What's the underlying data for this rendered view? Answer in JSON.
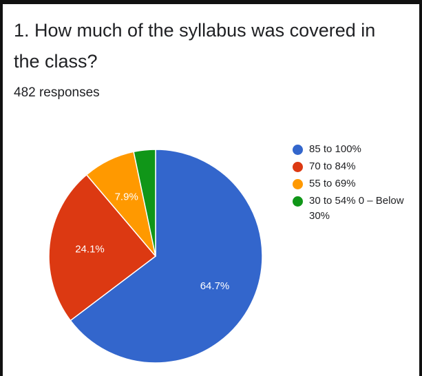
{
  "question": {
    "title": "1. How much of the syllabus was covered in the class?",
    "responses": "482 responses"
  },
  "chart_data": {
    "type": "pie",
    "title": "1. How much of the syllabus was covered in the class?",
    "categories": [
      "85 to 100%",
      "70 to 84%",
      "55 to 69%",
      "30 to 54% 0 – Below 30%"
    ],
    "values": [
      64.7,
      24.1,
      7.9,
      3.3
    ],
    "labels": [
      "64.7%",
      "24.1%",
      "7.9%",
      ""
    ],
    "colors": [
      "#3366cc",
      "#dc3912",
      "#ff9900",
      "#109618"
    ],
    "legend": "right"
  }
}
